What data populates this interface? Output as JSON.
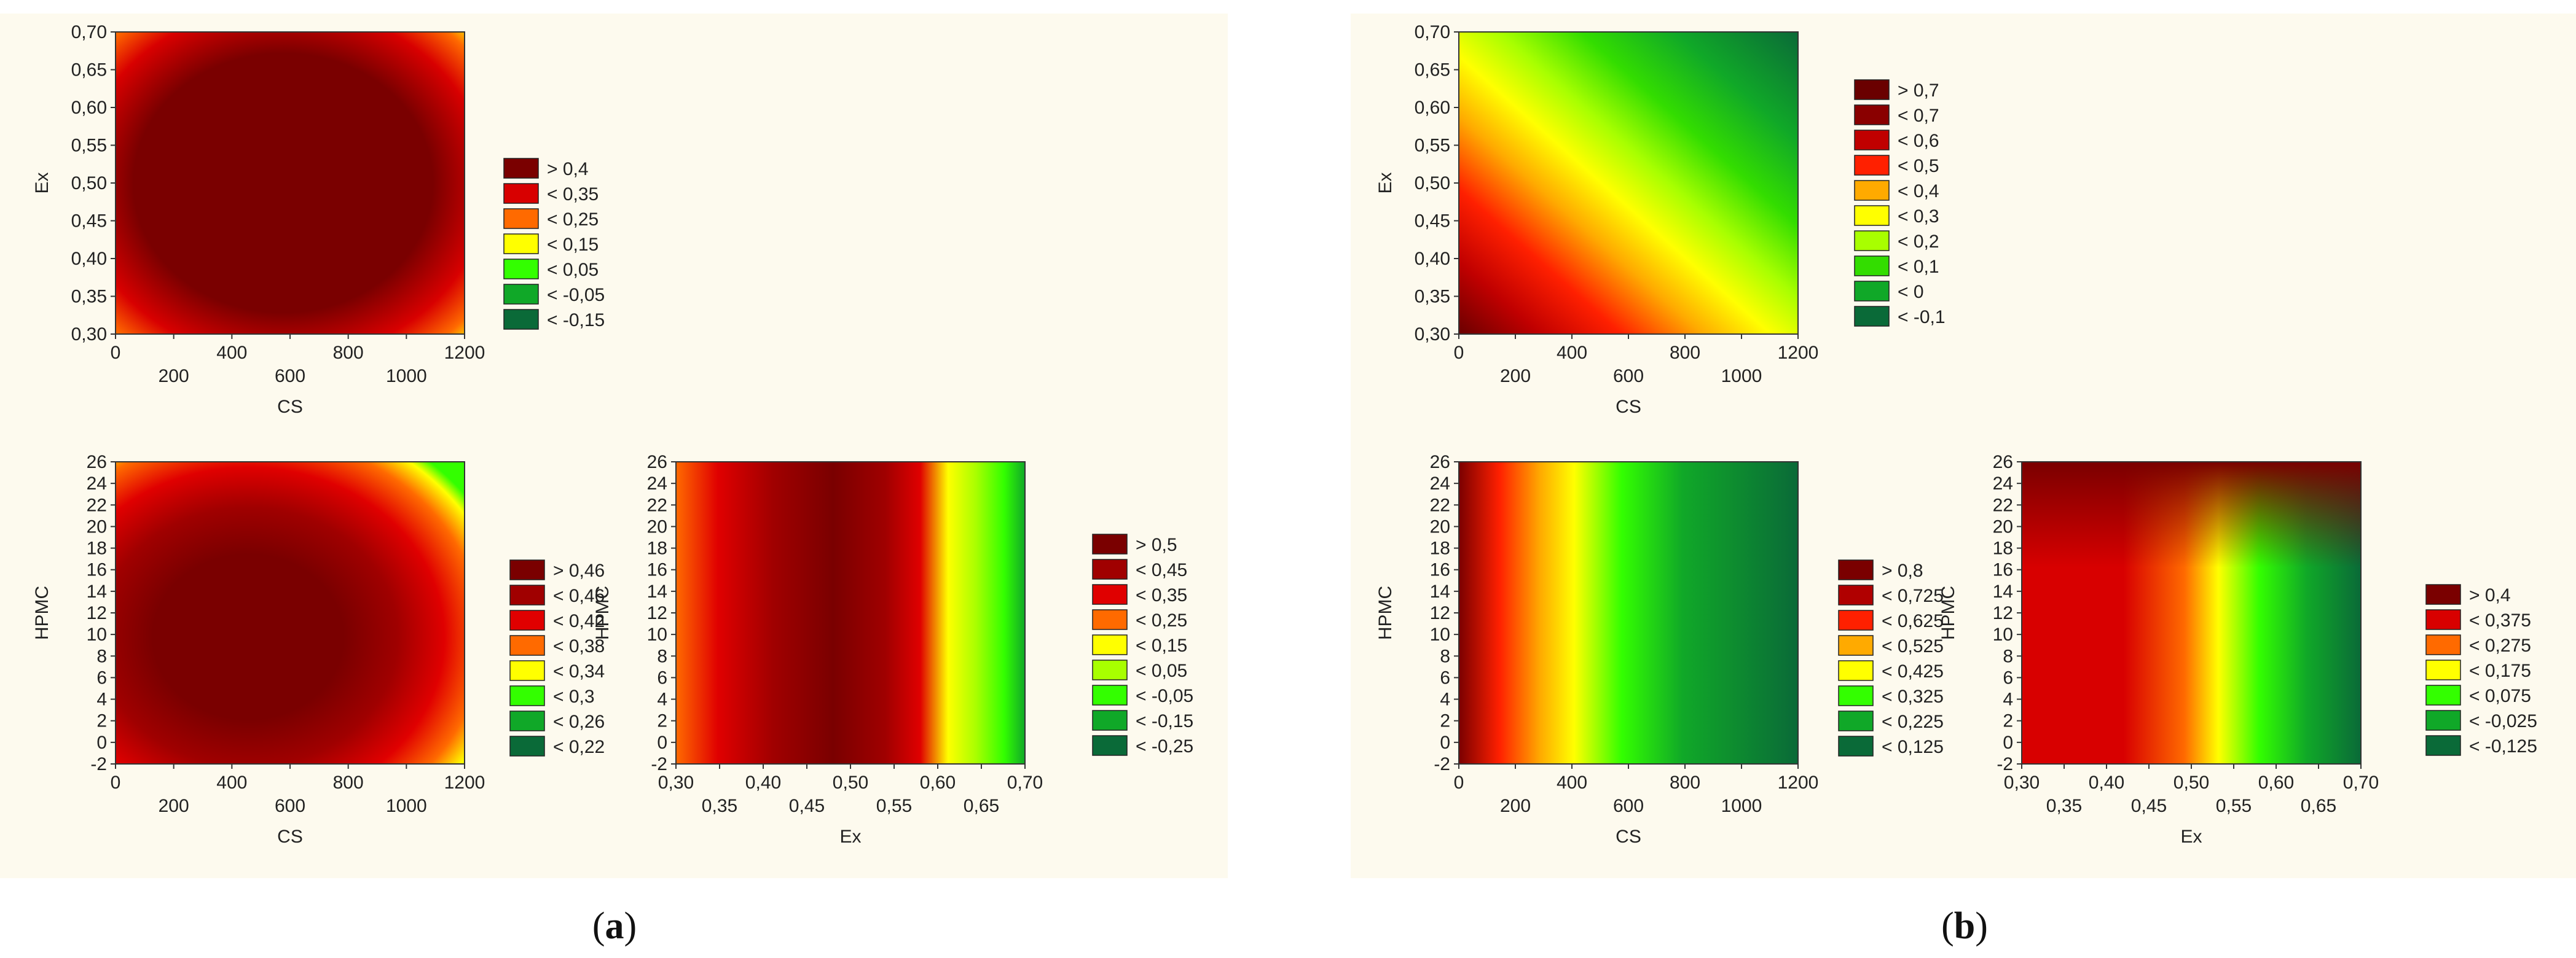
{
  "panel_labels": [
    {
      "open": "(",
      "letter": "a",
      "close": ")"
    },
    {
      "open": "(",
      "letter": "b",
      "close": ")"
    }
  ],
  "chart_data": [
    {
      "type": "heatmap",
      "panel": "a",
      "xlabel": "CS",
      "ylabel": "Ex",
      "xlim": [
        0,
        1200
      ],
      "ylim": [
        0.3,
        0.7
      ],
      "xticks": [
        "0",
        "200",
        "400",
        "600",
        "800",
        "1000",
        "1200"
      ],
      "yticks": [
        "0,30",
        "0,35",
        "0,40",
        "0,45",
        "0,50",
        "0,55",
        "0,60",
        "0,65",
        "0,70"
      ],
      "legend": [
        "> 0,4",
        "< 0,35",
        "< 0,25",
        "< 0,15",
        "< 0,05",
        "< -0,05",
        "< -0,15"
      ],
      "legend_colors": [
        "#7a0000",
        "#d80000",
        "#ff6a00",
        "#ffff00",
        "#33ff00",
        "#10a828",
        "#0a6a38"
      ],
      "grid": false,
      "legend_position": "right"
    },
    {
      "type": "heatmap",
      "panel": "a",
      "xlabel": "CS",
      "ylabel": "HPMC",
      "xlim": [
        0,
        1200
      ],
      "ylim": [
        -2,
        26
      ],
      "xticks": [
        "0",
        "200",
        "400",
        "600",
        "800",
        "1000",
        "1200"
      ],
      "yticks": [
        "-2",
        "0",
        "2",
        "4",
        "6",
        "8",
        "10",
        "12",
        "14",
        "16",
        "18",
        "20",
        "22",
        "24",
        "26"
      ],
      "legend": [
        "> 0,46",
        "< 0,46",
        "< 0,42",
        "< 0,38",
        "< 0,34",
        "< 0,3",
        "< 0,26",
        "< 0,22"
      ],
      "legend_colors": [
        "#7a0000",
        "#a00000",
        "#e00000",
        "#ff6a00",
        "#ffff00",
        "#33ff00",
        "#10a828",
        "#0a6a38"
      ],
      "grid": false,
      "legend_position": "right"
    },
    {
      "type": "heatmap",
      "panel": "a",
      "xlabel": "Ex",
      "ylabel": "HPMC",
      "xlim": [
        0.3,
        0.7
      ],
      "ylim": [
        -2,
        26
      ],
      "xticks": [
        "0,30",
        "0,35",
        "0,40",
        "0,45",
        "0,50",
        "0,55",
        "0,60",
        "0,65",
        "0,70"
      ],
      "yticks": [
        "-2",
        "0",
        "2",
        "4",
        "6",
        "8",
        "10",
        "12",
        "14",
        "16",
        "18",
        "20",
        "22",
        "24",
        "26"
      ],
      "legend": [
        "> 0,5",
        "< 0,45",
        "< 0,35",
        "< 0,25",
        "< 0,15",
        "< 0,05",
        "< -0,05",
        "< -0,15",
        "< -0,25"
      ],
      "legend_colors": [
        "#7a0000",
        "#a00000",
        "#e00000",
        "#ff6a00",
        "#ffff00",
        "#a8ff00",
        "#33ff00",
        "#10a828",
        "#0a6a38"
      ],
      "grid": false,
      "legend_position": "right"
    },
    {
      "type": "heatmap",
      "panel": "b",
      "xlabel": "CS",
      "ylabel": "Ex",
      "xlim": [
        0,
        1200
      ],
      "ylim": [
        0.3,
        0.7
      ],
      "xticks": [
        "0",
        "200",
        "400",
        "600",
        "800",
        "1000",
        "1200"
      ],
      "yticks": [
        "0,30",
        "0,35",
        "0,40",
        "0,45",
        "0,50",
        "0,55",
        "0,60",
        "0,65",
        "0,70"
      ],
      "legend": [
        "> 0,7",
        "< 0,7",
        "< 0,6",
        "< 0,5",
        "< 0,4",
        "< 0,3",
        "< 0,2",
        "< 0,1",
        "< 0",
        "< -0,1"
      ],
      "legend_colors": [
        "#6a0000",
        "#8a0000",
        "#c00000",
        "#ff2000",
        "#ffaa00",
        "#ffff00",
        "#a8ff00",
        "#33dd00",
        "#10a828",
        "#0a6a38"
      ],
      "grid": false,
      "legend_position": "right"
    },
    {
      "type": "heatmap",
      "panel": "b",
      "xlabel": "CS",
      "ylabel": "HPMC",
      "xlim": [
        0,
        1200
      ],
      "ylim": [
        -2,
        26
      ],
      "xticks": [
        "0",
        "200",
        "400",
        "600",
        "800",
        "1000",
        "1200"
      ],
      "yticks": [
        "-2",
        "0",
        "2",
        "4",
        "6",
        "8",
        "10",
        "12",
        "14",
        "16",
        "18",
        "20",
        "22",
        "24",
        "26"
      ],
      "legend": [
        "> 0,8",
        "< 0,725",
        "< 0,625",
        "< 0,525",
        "< 0,425",
        "< 0,325",
        "< 0,225",
        "< 0,125"
      ],
      "legend_colors": [
        "#7a0000",
        "#b00000",
        "#ff2000",
        "#ffaa00",
        "#ffff00",
        "#33ff00",
        "#10a828",
        "#0a6a38"
      ],
      "grid": false,
      "legend_position": "right"
    },
    {
      "type": "heatmap",
      "panel": "b",
      "xlabel": "Ex",
      "ylabel": "HPMC",
      "xlim": [
        0.3,
        0.7
      ],
      "ylim": [
        -2,
        26
      ],
      "xticks": [
        "0,30",
        "0,35",
        "0,40",
        "0,45",
        "0,50",
        "0,55",
        "0,60",
        "0,65",
        "0,70"
      ],
      "yticks": [
        "-2",
        "0",
        "2",
        "4",
        "6",
        "8",
        "10",
        "12",
        "14",
        "16",
        "18",
        "20",
        "22",
        "24",
        "26"
      ],
      "legend": [
        "> 0,4",
        "< 0,375",
        "< 0,275",
        "< 0,175",
        "< 0,075",
        "< -0,025",
        "< -0,125"
      ],
      "legend_colors": [
        "#7a0000",
        "#d80000",
        "#ff6a00",
        "#ffff00",
        "#33ff00",
        "#10a828",
        "#0a6a38"
      ],
      "grid": false,
      "legend_position": "right"
    }
  ]
}
